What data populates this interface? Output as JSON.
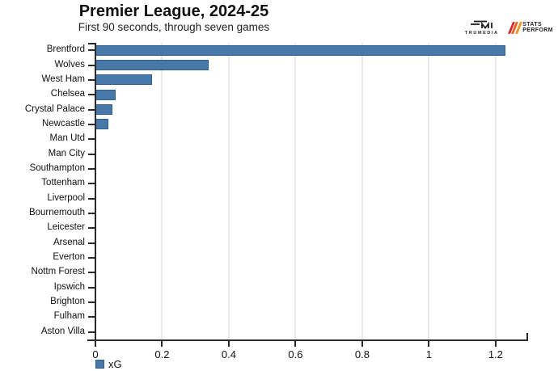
{
  "logos": {
    "trumedia_label": "TRUMEDIA",
    "statsperform_line1": "STATS",
    "statsperform_line2": "PERFORM"
  },
  "legend": {
    "label": "xG"
  },
  "colors": {
    "bar": "#4878a8",
    "bar_border": "#2e5e94",
    "axis": "#2b2b2b",
    "grid": "#e8e8e8",
    "sp_red": "#d7282f",
    "sp_mid": "#ea6224",
    "sp_orange": "#f7941d",
    "logo_dark": "#231f20"
  },
  "chart_data": {
    "type": "bar",
    "orientation": "horizontal",
    "title": "Premier League, 2024-25",
    "subtitle": "First 90 seconds, through seven games",
    "series_name": "xG",
    "categories": [
      "Brentford",
      "Wolves",
      "West Ham",
      "Chelsea",
      "Crystal Palace",
      "Newcastle",
      "Man Utd",
      "Man City",
      "Southampton",
      "Tottenham",
      "Liverpool",
      "Bournemouth",
      "Leicester",
      "Arsenal",
      "Everton",
      "Nottm Forest",
      "Ipswich",
      "Brighton",
      "Fulham",
      "Aston Villa"
    ],
    "values": [
      1.23,
      0.34,
      0.17,
      0.06,
      0.05,
      0.04,
      0,
      0,
      0,
      0,
      0,
      0,
      0,
      0,
      0,
      0,
      0,
      0,
      0,
      0
    ],
    "xlim": [
      0,
      1.29
    ],
    "x_ticks": [
      0,
      0.2,
      0.4,
      0.6,
      0.8,
      1,
      1.2
    ],
    "x_tick_labels": [
      "0",
      "0.2",
      "0.4",
      "0.6",
      "0.8",
      "1",
      "1.2"
    ],
    "grid": "vertical-light",
    "legend_position": "bottom-left"
  }
}
